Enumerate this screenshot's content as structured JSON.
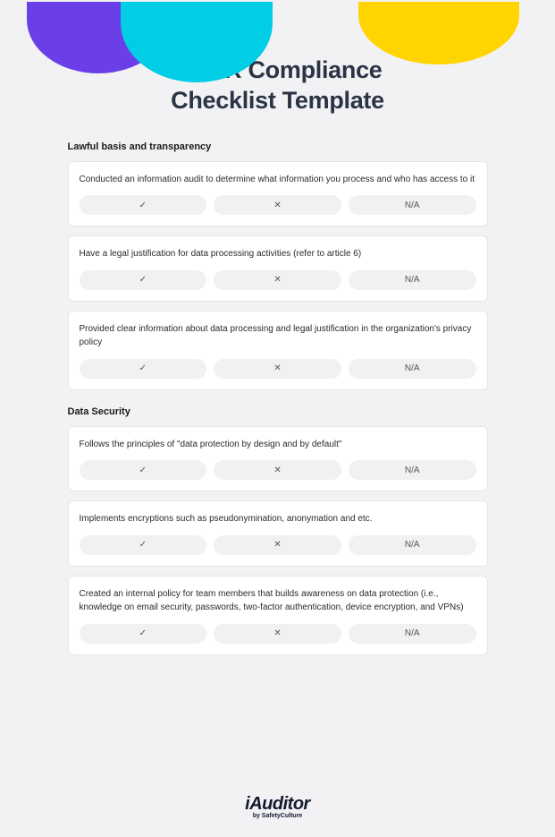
{
  "title_line1": "GDPR Compliance",
  "title_line2": "Checklist Template",
  "options": {
    "yes": "✓",
    "no": "✕",
    "na": "N/A"
  },
  "sections": [
    {
      "heading": "Lawful basis and transparency",
      "items": [
        {
          "text": "Conducted an information audit to determine what information you process and who has access to it"
        },
        {
          "text": "Have a legal justification for data processing activities (refer to article 6)"
        },
        {
          "text": "Provided clear information about data processing and legal justification in the organization's privacy policy"
        }
      ]
    },
    {
      "heading": "Data Security",
      "items": [
        {
          "text": "Follows the principles of \"data protection by design and by default\""
        },
        {
          "text": "Implements encryptions such as pseudonymination, anonymation and etc."
        },
        {
          "text": "Created an internal policy for team members that builds awareness on data protection (i.e., knowledge on email security, passwords, two-factor authentication, device encryption, and VPNs)"
        }
      ]
    }
  ],
  "logo": {
    "brand": "iAuditor",
    "byline": "by SafetyCulture"
  },
  "colors": {
    "purple": "#6b3fe8",
    "cyan": "#00cde6",
    "yellow": "#ffd400",
    "page_bg": "#f2f2f5",
    "card_bg": "#ffffff",
    "option_bg": "#f1f1f3",
    "title_color": "#2b3445"
  }
}
